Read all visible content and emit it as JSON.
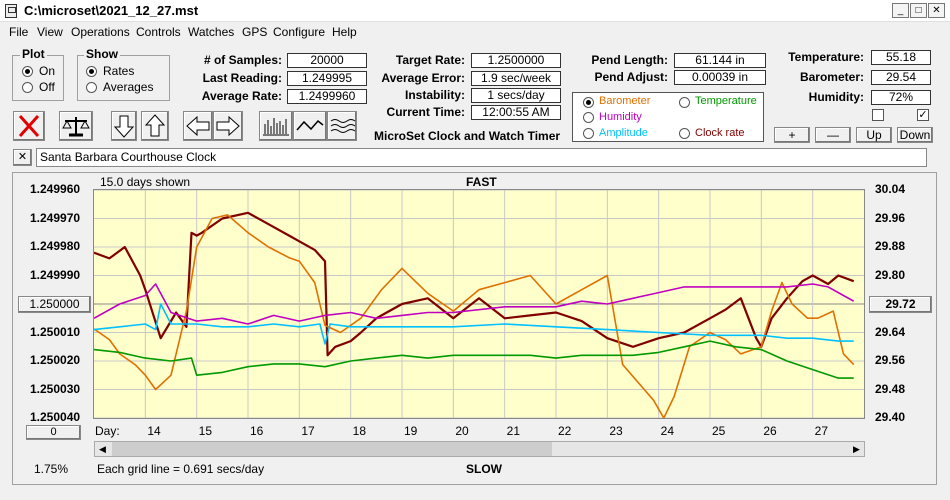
{
  "window": {
    "title": "C:\\microset\\2021_12_27.mst"
  },
  "menu": [
    "File",
    "View",
    "Operations",
    "Controls",
    "Watches",
    "GPS",
    "Configure",
    "Help"
  ],
  "plot_group": {
    "title": "Plot",
    "options": [
      "On",
      "Off"
    ],
    "selected": "On"
  },
  "show_group": {
    "title": "Show",
    "options": [
      "Rates",
      "Averages"
    ],
    "selected": "Rates"
  },
  "stats": [
    {
      "label": "# of Samples:",
      "value": "20000"
    },
    {
      "label": "Last Reading:",
      "value": "1.249995"
    },
    {
      "label": "Average Rate:",
      "value": "1.2499960"
    }
  ],
  "rates": [
    {
      "label": "Target Rate:",
      "value": "1.2500000"
    },
    {
      "label": "Average Error:",
      "value": "1.9 sec/week"
    },
    {
      "label": "Instability:",
      "value": "1 secs/day"
    },
    {
      "label": "Current Time:",
      "value": "12:00:55 AM"
    }
  ],
  "app_caption": "MicroSet Clock and Watch Timer",
  "pendulum": [
    {
      "label": "Pend Length:",
      "value": "61.144 in"
    },
    {
      "label": "Pend Adjust:",
      "value": "0.00039 in"
    }
  ],
  "sensor_select": {
    "options": [
      {
        "label": "Barometer",
        "color": "#e07000",
        "selected": true
      },
      {
        "label": "Temperature",
        "color": "#009900",
        "selected": false
      },
      {
        "label": "Humidity",
        "color": "#c000c0",
        "selected": false
      },
      {
        "label": "Amplitude",
        "color": "#00c0ff",
        "selected": false
      },
      {
        "label": "Clock rate",
        "color": "#800000",
        "selected": false
      }
    ]
  },
  "environment": [
    {
      "label": "Temperature:",
      "value": "55.18"
    },
    {
      "label": "Barometer:",
      "value": "29.54"
    },
    {
      "label": "Humidity:",
      "value": "72%"
    }
  ],
  "checkboxes": [
    {
      "checked": false
    },
    {
      "checked": true
    }
  ],
  "scale_buttons": {
    "plus": "+",
    "minus": "—",
    "up": "Up",
    "down": "Down"
  },
  "watch_name": "Santa Barbara Courthouse Clock",
  "chart_data": {
    "type": "line",
    "title_top": "FAST",
    "title_bottom": "SLOW",
    "days_shown": "15.0 days shown",
    "grid_note": "Each grid line = 0.691 secs/day",
    "zoom_label": "1.75%",
    "x_axis_label": "Day:",
    "x_days": [
      "14",
      "15",
      "16",
      "17",
      "18",
      "19",
      "20",
      "21",
      "22",
      "23",
      "24",
      "25",
      "26",
      "27"
    ],
    "left_axis": {
      "ticks": [
        "1.249960",
        "1.249970",
        "1.249980",
        "1.249990",
        "1.250000",
        "1.250010",
        "1.250020",
        "1.250030",
        "1.250040"
      ],
      "range": [
        1.24996,
        1.25004
      ],
      "center_button": "1.250000"
    },
    "right_axis": {
      "ticks": [
        "30.04",
        "29.96",
        "29.88",
        "29.80",
        "29.72",
        "29.64",
        "29.56",
        "29.48",
        "29.40"
      ],
      "range": [
        29.4,
        30.04
      ],
      "center_button": "29.72"
    },
    "bottom_left_button": "0",
    "grid": true,
    "x_range_days": [
      13.0,
      28.0
    ],
    "series": [
      {
        "name": "Clock rate",
        "color": "#800000",
        "axis": "left",
        "x": [
          13.0,
          13.3,
          13.6,
          13.9,
          14.0,
          14.3,
          14.6,
          14.8,
          14.9,
          15.0,
          15.1,
          15.5,
          16.0,
          16.5,
          16.8,
          17.0,
          17.3,
          17.5,
          17.55,
          17.7,
          18.0,
          18.2,
          18.5,
          19.0,
          19.5,
          20.0,
          20.5,
          21.0,
          21.5,
          22.0,
          22.5,
          23.0,
          23.5,
          24.0,
          24.5,
          25.0,
          25.3,
          25.6,
          25.9,
          26.0,
          26.2,
          26.5,
          26.8,
          27.0,
          27.3,
          27.5,
          27.8
        ],
        "y": [
          1.249982,
          1.249984,
          1.24998,
          1.24999,
          1.249995,
          1.250012,
          1.250003,
          1.250008,
          1.249975,
          1.249976,
          1.249975,
          1.24997,
          1.249968,
          1.249973,
          1.249976,
          1.249978,
          1.249981,
          1.249985,
          1.250018,
          1.250015,
          1.250013,
          1.25001,
          1.250005,
          1.25,
          1.249998,
          1.250005,
          1.249998,
          1.250005,
          1.250004,
          1.250003,
          1.250006,
          1.250012,
          1.250015,
          1.250012,
          1.25001,
          1.250005,
          1.250002,
          1.249998,
          1.250012,
          1.250015,
          1.250005,
          1.249998,
          1.249992,
          1.24999,
          1.249993,
          1.24999,
          1.249992
        ]
      },
      {
        "name": "Barometer",
        "color": "#e07000",
        "axis": "right",
        "x": [
          13.0,
          13.3,
          13.5,
          13.8,
          14.0,
          14.2,
          14.5,
          14.8,
          15.0,
          15.3,
          15.6,
          16.0,
          16.4,
          16.8,
          17.0,
          17.3,
          17.5,
          17.8,
          18.2,
          18.6,
          19.0,
          19.5,
          20.0,
          20.5,
          21.0,
          21.5,
          22.0,
          22.5,
          23.0,
          23.3,
          23.6,
          23.9,
          24.1,
          24.3,
          24.6,
          25.0,
          25.3,
          25.6,
          26.0,
          26.2,
          26.4,
          26.6,
          26.9,
          27.1,
          27.4,
          27.6,
          27.8
        ],
        "y": [
          29.65,
          29.62,
          29.58,
          29.55,
          29.52,
          29.48,
          29.52,
          29.7,
          29.88,
          29.96,
          29.97,
          29.92,
          29.88,
          29.85,
          29.84,
          29.78,
          29.66,
          29.64,
          29.68,
          29.76,
          29.82,
          29.75,
          29.7,
          29.76,
          29.78,
          29.8,
          29.72,
          29.76,
          29.8,
          29.55,
          29.5,
          29.45,
          29.4,
          29.46,
          29.6,
          29.64,
          29.62,
          29.58,
          29.6,
          29.7,
          29.78,
          29.72,
          29.68,
          29.68,
          29.7,
          29.58,
          29.55
        ]
      },
      {
        "name": "Humidity",
        "color": "#c000c0",
        "axis": "left",
        "x": [
          13.0,
          13.5,
          14.0,
          14.2,
          14.5,
          15.0,
          15.5,
          16.0,
          16.5,
          17.0,
          17.5,
          18.0,
          18.5,
          19.0,
          19.5,
          20.0,
          21.0,
          22.0,
          22.5,
          23.0,
          23.5,
          24.0,
          24.5,
          25.0,
          25.5,
          26.0,
          26.5,
          27.0,
          27.3,
          27.6,
          27.8
        ],
        "y": [
          1.250005,
          1.25,
          1.249997,
          1.249993,
          1.250003,
          1.250006,
          1.250005,
          1.250007,
          1.250004,
          1.250006,
          1.250004,
          1.250003,
          1.250005,
          1.250004,
          1.250003,
          1.250003,
          1.250001,
          1.250001,
          1.249999,
          1.25,
          1.249998,
          1.249996,
          1.249994,
          1.249994,
          1.249994,
          1.249994,
          1.249994,
          1.249993,
          1.249994,
          1.249997,
          1.249999
        ]
      },
      {
        "name": "Amplitude",
        "color": "#00c0ff",
        "axis": "left",
        "x": [
          13.0,
          13.5,
          14.0,
          14.2,
          14.3,
          14.5,
          15.0,
          15.5,
          16.0,
          16.5,
          17.0,
          17.4,
          17.5,
          17.6,
          18.0,
          19.0,
          20.0,
          21.0,
          22.0,
          23.0,
          24.0,
          25.0,
          26.0,
          26.5,
          27.0,
          27.5,
          27.8
        ],
        "y": [
          1.250009,
          1.250008,
          1.250007,
          1.250009,
          1.25,
          1.250007,
          1.250007,
          1.250008,
          1.250008,
          1.250007,
          1.250008,
          1.250007,
          1.250014,
          1.250007,
          1.250008,
          1.250008,
          1.250008,
          1.250007,
          1.250008,
          1.250009,
          1.25001,
          1.250011,
          1.250011,
          1.250012,
          1.250012,
          1.250013,
          1.250013
        ]
      },
      {
        "name": "Temperature",
        "color": "#009900",
        "axis": "left",
        "x": [
          13.0,
          13.5,
          14.0,
          14.5,
          14.9,
          15.0,
          15.5,
          16.0,
          16.5,
          17.0,
          17.5,
          18.0,
          18.5,
          19.0,
          19.5,
          20.0,
          20.5,
          21.0,
          21.5,
          22.0,
          22.5,
          23.0,
          23.5,
          24.0,
          24.5,
          25.0,
          25.5,
          26.0,
          26.5,
          27.0,
          27.5,
          27.8
        ],
        "y": [
          1.250016,
          1.250017,
          1.250019,
          1.25002,
          1.250019,
          1.250025,
          1.250024,
          1.250022,
          1.250021,
          1.250021,
          1.250022,
          1.25002,
          1.250019,
          1.250018,
          1.250019,
          1.250018,
          1.250018,
          1.250018,
          1.250018,
          1.250019,
          1.250018,
          1.250018,
          1.250018,
          1.250017,
          1.250015,
          1.250013,
          1.250015,
          1.250016,
          1.25002,
          1.250023,
          1.250026,
          1.250026
        ]
      }
    ]
  }
}
